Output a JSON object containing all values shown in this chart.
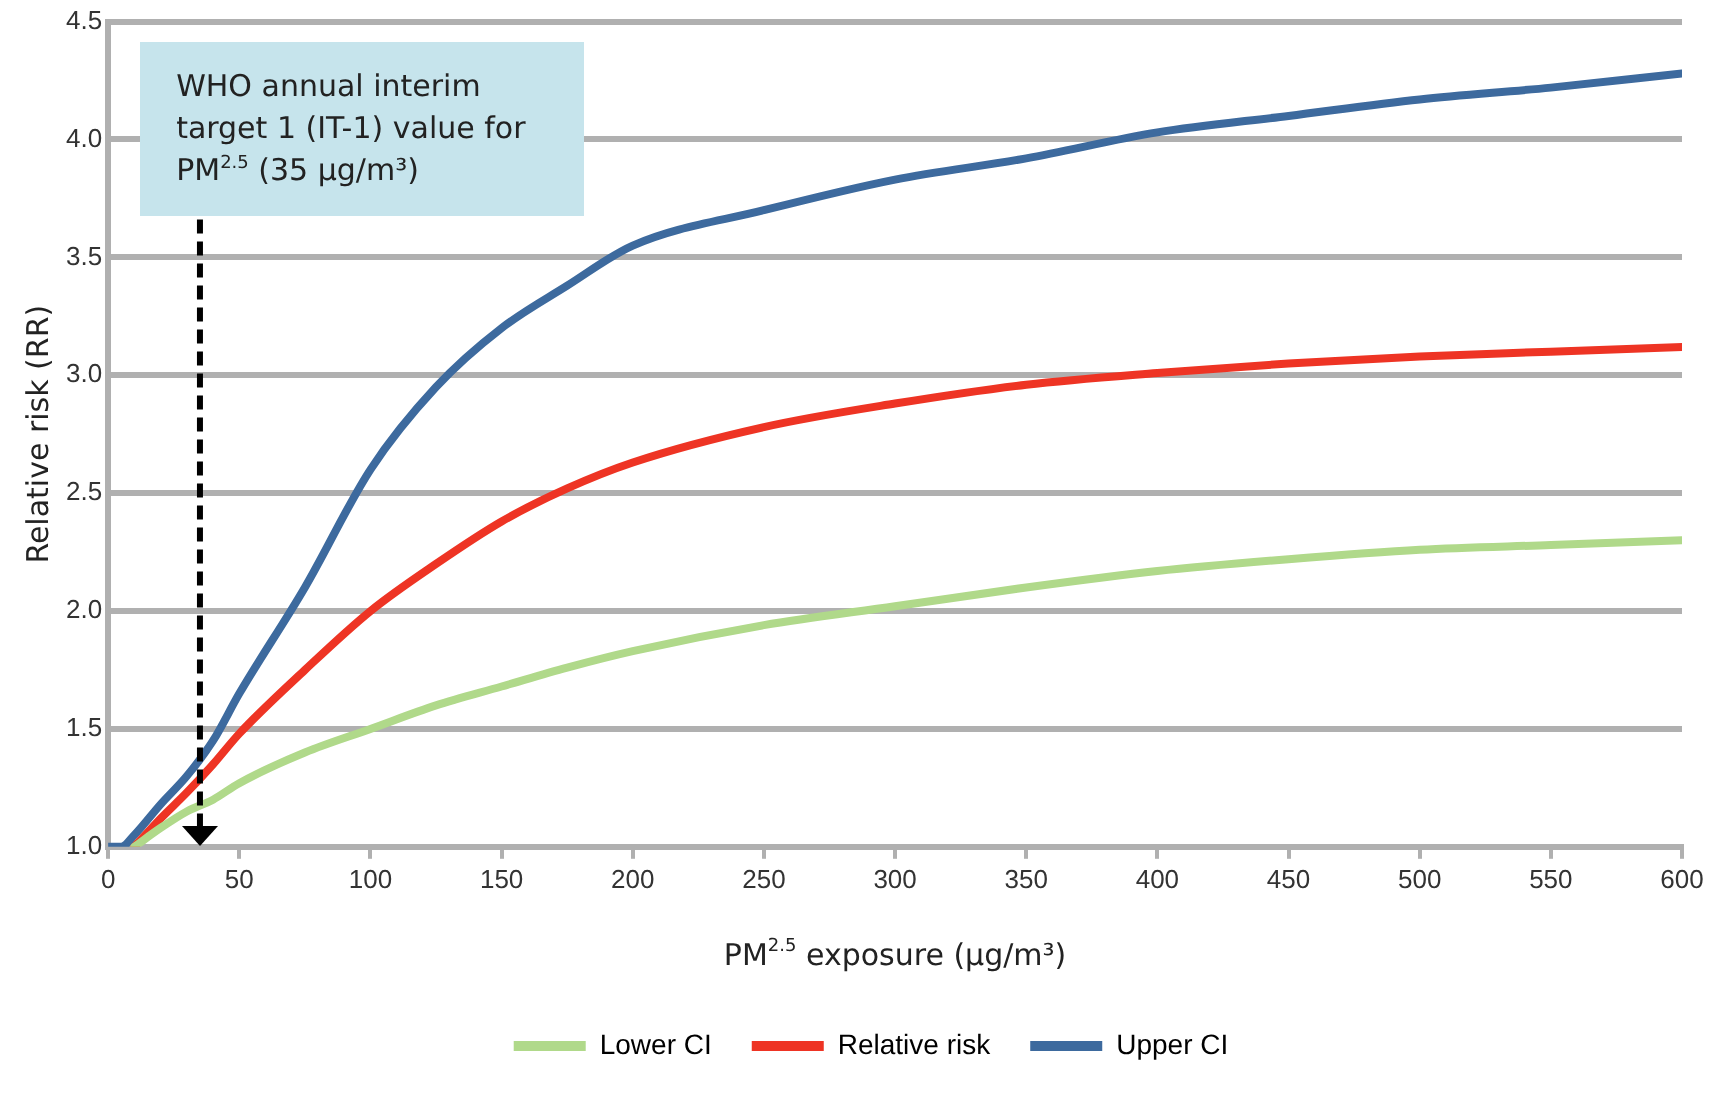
{
  "chart_data": {
    "type": "line",
    "xlabel": "PM$^{2.5}$ exposure (µg/m³)",
    "ylabel": "Relative risk (RR)",
    "xlim": [
      0,
      600
    ],
    "xticks": [
      0,
      50,
      100,
      150,
      200,
      250,
      300,
      350,
      400,
      450,
      500,
      550,
      600
    ],
    "ylim": [
      1.0,
      4.5
    ],
    "yticks": [
      {
        "value": 1.0,
        "label": "1.0"
      },
      {
        "value": 1.5,
        "label": "1.5"
      },
      {
        "value": 2.0,
        "label": "2.0"
      },
      {
        "value": 2.5,
        "label": "2.5"
      },
      {
        "value": 3.0,
        "label": "3.0"
      },
      {
        "value": 3.5,
        "label": "3.5"
      },
      {
        "value": 4.0,
        "label": "4.0"
      },
      {
        "value": 4.5,
        "label": "4.5"
      }
    ],
    "grid": "y",
    "legend": "bottom",
    "marker": "none",
    "line_style": "solid",
    "ref_lines": [
      {
        "axis": "x",
        "value": 35,
        "label": "WHO annual interim target 1 (IT-1) value for PM$^{2.5}$ (35 µg/m³)",
        "color": "#000000",
        "line_style": "dashed"
      }
    ],
    "series": [
      {
        "name": "Lower CI",
        "color": "#b0d98a",
        "x": [
          10,
          20,
          30,
          40,
          50,
          75,
          100,
          125,
          150,
          175,
          200,
          250,
          300,
          350,
          400,
          450,
          500,
          550,
          600
        ],
        "values": [
          1.0,
          1.08,
          1.15,
          1.2,
          1.27,
          1.4,
          1.5,
          1.6,
          1.68,
          1.76,
          1.83,
          1.94,
          2.02,
          2.1,
          2.17,
          2.22,
          2.26,
          2.28,
          2.3
        ]
      },
      {
        "name": "Relative risk",
        "color": "#ee3424",
        "x": [
          10,
          20,
          30,
          40,
          50,
          75,
          100,
          125,
          150,
          175,
          200,
          250,
          300,
          350,
          400,
          450,
          500,
          550,
          600
        ],
        "values": [
          1.0,
          1.12,
          1.23,
          1.35,
          1.48,
          1.75,
          2.0,
          2.2,
          2.38,
          2.52,
          2.63,
          2.78,
          2.88,
          2.96,
          3.01,
          3.05,
          3.08,
          3.1,
          3.12
        ]
      },
      {
        "name": "Upper CI",
        "color": "#3d6a9e",
        "x": [
          0,
          5,
          10,
          20,
          30,
          40,
          50,
          75,
          100,
          125,
          150,
          175,
          200,
          250,
          300,
          350,
          400,
          450,
          500,
          550,
          600
        ],
        "values": [
          1.0,
          1.0,
          1.05,
          1.18,
          1.3,
          1.45,
          1.65,
          2.1,
          2.6,
          2.95,
          3.2,
          3.38,
          3.55,
          3.7,
          3.83,
          3.92,
          4.03,
          4.1,
          4.17,
          4.22,
          4.28
        ]
      }
    ]
  }
}
